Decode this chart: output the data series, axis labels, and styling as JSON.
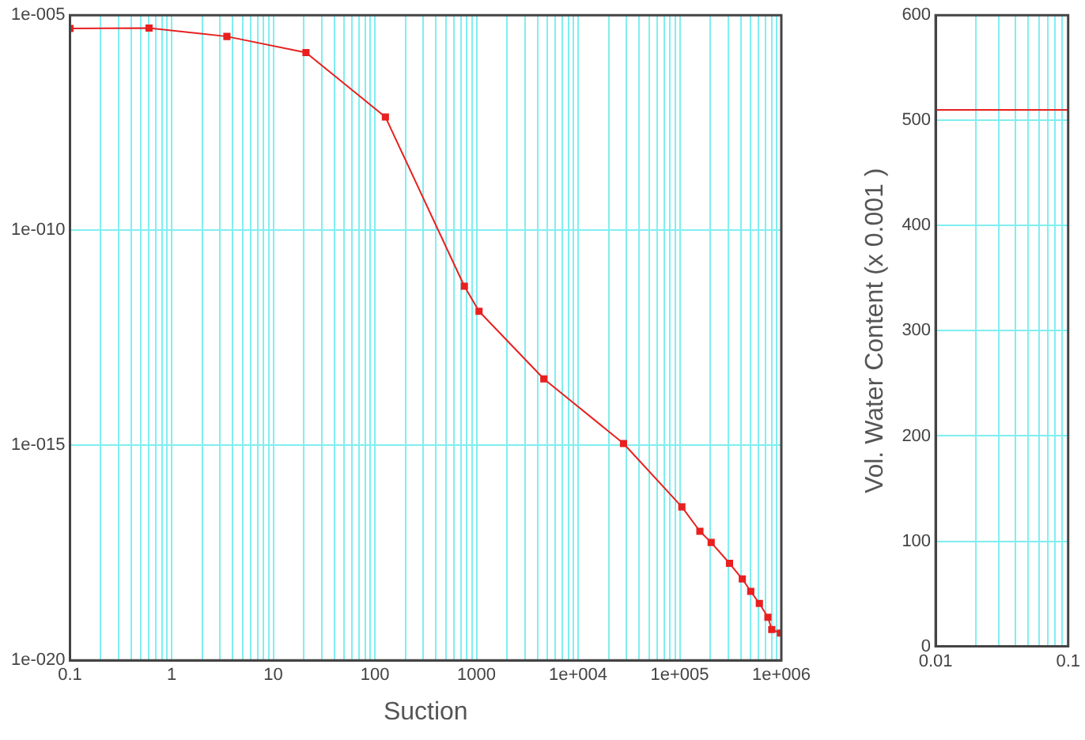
{
  "chart_data": [
    {
      "type": "line",
      "xlabel": "Suction",
      "log": "xy",
      "grid": true,
      "marker": "square",
      "line_style": "solid",
      "xlim": [
        0.1,
        1000000
      ],
      "ylim": [
        1e-20,
        1e-05
      ],
      "xticks": [
        0.1,
        {
          "value": 0.2,
          "label": null
        },
        {
          "value": 0.3,
          "label": null
        },
        {
          "value": 0.4,
          "label": null
        },
        {
          "value": 0.5,
          "label": null
        },
        {
          "value": 0.6,
          "label": null
        },
        {
          "value": 0.7,
          "label": null
        },
        {
          "value": 0.8,
          "label": null
        },
        {
          "value": 0.9,
          "label": null
        },
        1,
        {
          "value": 2,
          "label": null
        },
        {
          "value": 3,
          "label": null
        },
        {
          "value": 4,
          "label": null
        },
        {
          "value": 5,
          "label": null
        },
        {
          "value": 6,
          "label": null
        },
        {
          "value": 7,
          "label": null
        },
        {
          "value": 8,
          "label": null
        },
        {
          "value": 9,
          "label": null
        },
        10,
        {
          "value": 20,
          "label": null
        },
        {
          "value": 30,
          "label": null
        },
        {
          "value": 40,
          "label": null
        },
        {
          "value": 50,
          "label": null
        },
        {
          "value": 60,
          "label": null
        },
        {
          "value": 70,
          "label": null
        },
        {
          "value": 80,
          "label": null
        },
        {
          "value": 90,
          "label": null
        },
        100,
        {
          "value": 200,
          "label": null
        },
        {
          "value": 300,
          "label": null
        },
        {
          "value": 400,
          "label": null
        },
        {
          "value": 500,
          "label": null
        },
        {
          "value": 600,
          "label": null
        },
        {
          "value": 700,
          "label": null
        },
        {
          "value": 800,
          "label": null
        },
        {
          "value": 900,
          "label": null
        },
        1000,
        {
          "value": 2000,
          "label": null
        },
        {
          "value": 3000,
          "label": null
        },
        {
          "value": 4000,
          "label": null
        },
        {
          "value": 5000,
          "label": null
        },
        {
          "value": 6000,
          "label": null
        },
        {
          "value": 7000,
          "label": null
        },
        {
          "value": 8000,
          "label": null
        },
        {
          "value": 9000,
          "label": null
        },
        {
          "value": 10000,
          "label": "1e+004"
        },
        {
          "value": 20000,
          "label": null
        },
        {
          "value": 30000,
          "label": null
        },
        {
          "value": 40000,
          "label": null
        },
        {
          "value": 50000,
          "label": null
        },
        {
          "value": 60000,
          "label": null
        },
        {
          "value": 70000,
          "label": null
        },
        {
          "value": 80000,
          "label": null
        },
        {
          "value": 90000,
          "label": null
        },
        {
          "value": 100000,
          "label": "1e+005"
        },
        {
          "value": 200000,
          "label": null
        },
        {
          "value": 300000,
          "label": null
        },
        {
          "value": 400000,
          "label": null
        },
        {
          "value": 500000,
          "label": null
        },
        {
          "value": 600000,
          "label": null
        },
        {
          "value": 700000,
          "label": null
        },
        {
          "value": 800000,
          "label": null
        },
        {
          "value": 900000,
          "label": null
        },
        {
          "value": 1000000,
          "label": "1e+006"
        }
      ],
      "yticks": [
        {
          "value": 1e-20,
          "label": "1e-020"
        },
        {
          "value": 1e-15,
          "label": "1e-015"
        },
        {
          "value": 1e-10,
          "label": "1e-010"
        },
        {
          "value": 1e-05,
          "label": "1e-005"
        }
      ],
      "series": [
        {
          "color": "#e82020",
          "x": [
            0.1,
            0.6,
            3.5,
            21,
            127,
            760,
            1060,
            4600,
            28000,
            105000,
            158000,
            204000,
            309000,
            413000,
            500000,
            608000,
            738000,
            805000,
            980000
          ],
          "values": [
            4.9e-06,
            5e-06,
            3.2e-06,
            1.35e-06,
            4.3e-08,
            5e-12,
            1.3e-12,
            3.5e-14,
            1.1e-15,
            3.7e-17,
            1e-17,
            5.5e-18,
            1.8e-18,
            7.8e-19,
            4e-19,
            2.1e-19,
            1e-19,
            5.2e-20,
            4.3e-20
          ]
        }
      ]
    },
    {
      "type": "line",
      "ylabel": "Vol. Water Content (x 0.001 )",
      "log": "x",
      "grid": true,
      "marker": "none",
      "line_style": "solid",
      "xlim": [
        0.01,
        0.1
      ],
      "ylim": [
        0,
        600
      ],
      "xticks": [
        0.01,
        {
          "value": 0.02,
          "label": null
        },
        {
          "value": 0.03,
          "label": null
        },
        {
          "value": 0.04,
          "label": null
        },
        {
          "value": 0.05,
          "label": null
        },
        {
          "value": 0.06,
          "label": null
        },
        {
          "value": 0.07,
          "label": null
        },
        {
          "value": 0.08,
          "label": null
        },
        {
          "value": 0.09,
          "label": null
        },
        0.1
      ],
      "yticks": [
        0,
        100,
        200,
        300,
        400,
        500,
        600
      ],
      "series": [
        {
          "color": "#e82020",
          "x": [
            0.01,
            0.1
          ],
          "values": [
            510,
            510
          ]
        }
      ]
    }
  ]
}
